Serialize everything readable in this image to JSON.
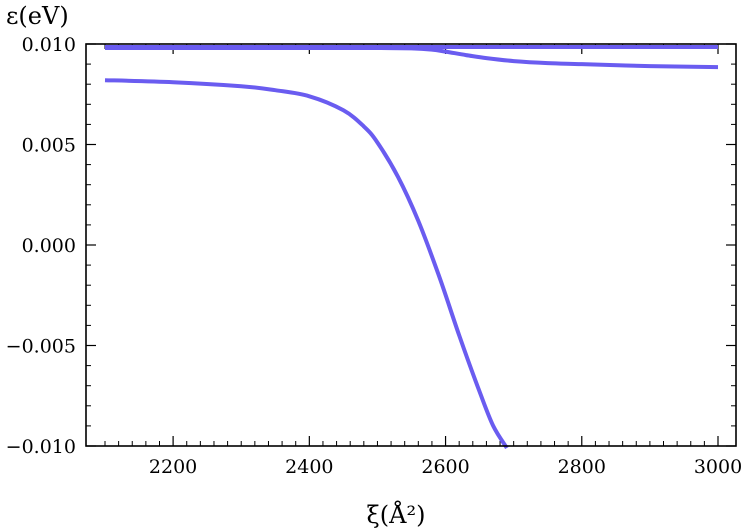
{
  "chart_data": {
    "type": "line",
    "ylabel": "ε(eV)",
    "xlabel": "ξ(Å²)",
    "xlim": [
      2100,
      3000
    ],
    "ylim": [
      -0.01,
      0.01
    ],
    "x_ticks": [
      2200,
      2400,
      2600,
      2800,
      3000
    ],
    "x_tick_labels": [
      "2200",
      "2400",
      "2600",
      "2800",
      "3000"
    ],
    "y_ticks": [
      0.01,
      0.005,
      0.0,
      -0.005,
      -0.01
    ],
    "y_tick_labels": [
      "0.010",
      "0.005",
      "0.000",
      "−0.005",
      "−0.010"
    ],
    "grid": false,
    "line_color": "#6a5cf0",
    "series": [
      {
        "x": [
          2100,
          2200,
          2300,
          2400,
          2450,
          2500,
          2550,
          2580,
          2600,
          2630,
          2660,
          2700,
          2750,
          2800,
          2900,
          3000
        ],
        "y": [
          0.0098,
          0.0098,
          0.0098,
          0.0098,
          0.0098,
          0.0098,
          0.00978,
          0.00972,
          0.00962,
          0.00945,
          0.0093,
          0.00915,
          0.00905,
          0.009,
          0.0089,
          0.00885
        ]
      },
      {
        "x": [
          2100,
          3000
        ],
        "y": [
          0.00985,
          0.00985
        ]
      },
      {
        "x": [
          2100,
          2200,
          2300,
          2350,
          2400,
          2450,
          2480,
          2500,
          2530,
          2560,
          2590,
          2620,
          2650,
          2670,
          2690
        ],
        "y": [
          0.0082,
          0.0081,
          0.0079,
          0.0077,
          0.0074,
          0.0067,
          0.0059,
          0.0051,
          0.0034,
          0.0012,
          -0.0015,
          -0.0045,
          -0.0073,
          -0.009,
          -0.0101
        ]
      }
    ]
  }
}
